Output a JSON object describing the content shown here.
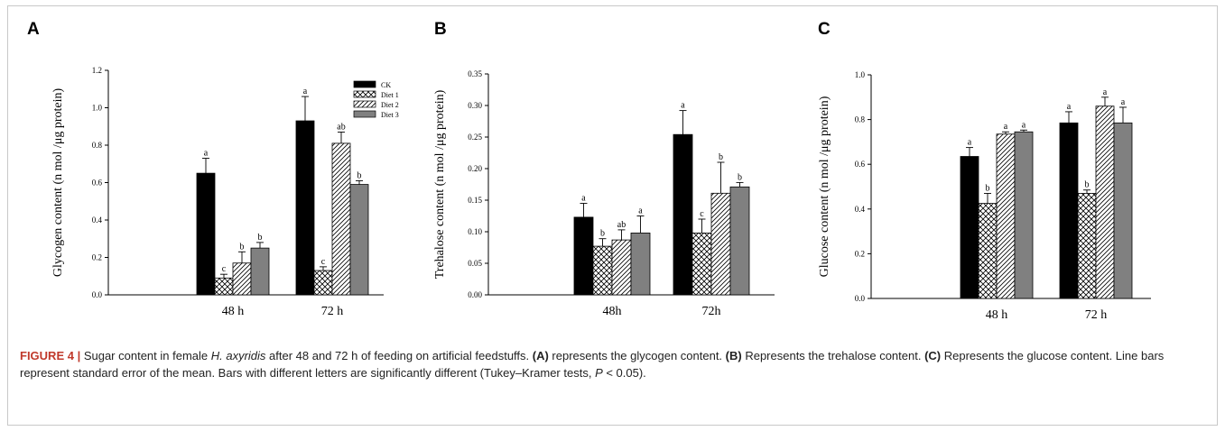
{
  "caption": {
    "figure_label": "FIGURE 4 |",
    "t1": " Sugar content in female ",
    "species": "H. axyridis",
    "t2": " after 48 and 72 h of feeding on artificial feedstuffs. ",
    "a": "(A)",
    "t3": " represents the glycogen content. ",
    "b": "(B)",
    "t4": " Represents the trehalose content. ",
    "c": "(C)",
    "t5": " Represents the glucose content. Line bars represent standard error of the mean. Bars with different letters are significantly different (Tukey–Kramer tests, ",
    "p": "P",
    "t6": " < 0.05)."
  },
  "chart_data": [
    {
      "panel": "A",
      "type": "bar",
      "ylabel": "Glycogen content (n mol /μg protein)",
      "xlabel": "",
      "ylim": [
        0,
        1.2
      ],
      "yticks": [
        "0.0",
        "0.2",
        "0.4",
        "0.6",
        "0.8",
        "1.0",
        "1.2"
      ],
      "categories": [
        "48 h",
        "72 h"
      ],
      "legend": {
        "position": "top-right",
        "entries": [
          "CK",
          "Diet 1",
          "Diet 2",
          "Diet 3"
        ]
      },
      "series": [
        {
          "name": "CK",
          "values": [
            0.65,
            0.93
          ],
          "errors": [
            0.08,
            0.13
          ],
          "letters": [
            "a",
            "a"
          ]
        },
        {
          "name": "Diet 1",
          "values": [
            0.09,
            0.13
          ],
          "errors": [
            0.02,
            0.02
          ],
          "letters": [
            "c",
            "c"
          ]
        },
        {
          "name": "Diet 2",
          "values": [
            0.17,
            0.81
          ],
          "errors": [
            0.06,
            0.06
          ],
          "letters": [
            "b",
            "ab"
          ]
        },
        {
          "name": "Diet 3",
          "values": [
            0.25,
            0.59
          ],
          "errors": [
            0.03,
            0.02
          ],
          "letters": [
            "b",
            "b"
          ]
        }
      ]
    },
    {
      "panel": "B",
      "type": "bar",
      "ylabel": "Trehalose content (n mol /μg protein)",
      "xlabel": "",
      "ylim": [
        0,
        0.35
      ],
      "yticks": [
        "0.00",
        "0.05",
        "0.10",
        "0.15",
        "0.20",
        "0.25",
        "0.30",
        "0.35"
      ],
      "categories": [
        "48h",
        "72h"
      ],
      "series": [
        {
          "name": "CK",
          "values": [
            0.123,
            0.254
          ],
          "errors": [
            0.022,
            0.038
          ],
          "letters": [
            "a",
            "a"
          ]
        },
        {
          "name": "Diet 1",
          "values": [
            0.077,
            0.098
          ],
          "errors": [
            0.012,
            0.022
          ],
          "letters": [
            "b",
            "c"
          ]
        },
        {
          "name": "Diet 2",
          "values": [
            0.087,
            0.161
          ],
          "errors": [
            0.016,
            0.049
          ],
          "letters": [
            "ab",
            "b"
          ]
        },
        {
          "name": "Diet 3",
          "values": [
            0.098,
            0.171
          ],
          "errors": [
            0.027,
            0.007
          ],
          "letters": [
            "a",
            "b"
          ]
        }
      ]
    },
    {
      "panel": "C",
      "type": "bar",
      "ylabel": "Glucose content (n mol /μg protein)",
      "xlabel": "",
      "ylim": [
        0,
        1.0
      ],
      "yticks": [
        "0.0",
        "0.2",
        "0.4",
        "0.6",
        "0.8",
        "1.0"
      ],
      "categories": [
        "48 h",
        "72 h"
      ],
      "series": [
        {
          "name": "CK",
          "values": [
            0.635,
            0.785
          ],
          "errors": [
            0.04,
            0.05
          ],
          "letters": [
            "a",
            "a"
          ]
        },
        {
          "name": "Diet 1",
          "values": [
            0.425,
            0.47
          ],
          "errors": [
            0.045,
            0.015
          ],
          "letters": [
            "b",
            "b"
          ]
        },
        {
          "name": "Diet 2",
          "values": [
            0.735,
            0.86
          ],
          "errors": [
            0.01,
            0.04
          ],
          "letters": [
            "a",
            "a"
          ]
        },
        {
          "name": "Diet 3",
          "values": [
            0.745,
            0.785
          ],
          "errors": [
            0.008,
            0.07
          ],
          "letters": [
            "a",
            "a"
          ]
        }
      ]
    }
  ]
}
